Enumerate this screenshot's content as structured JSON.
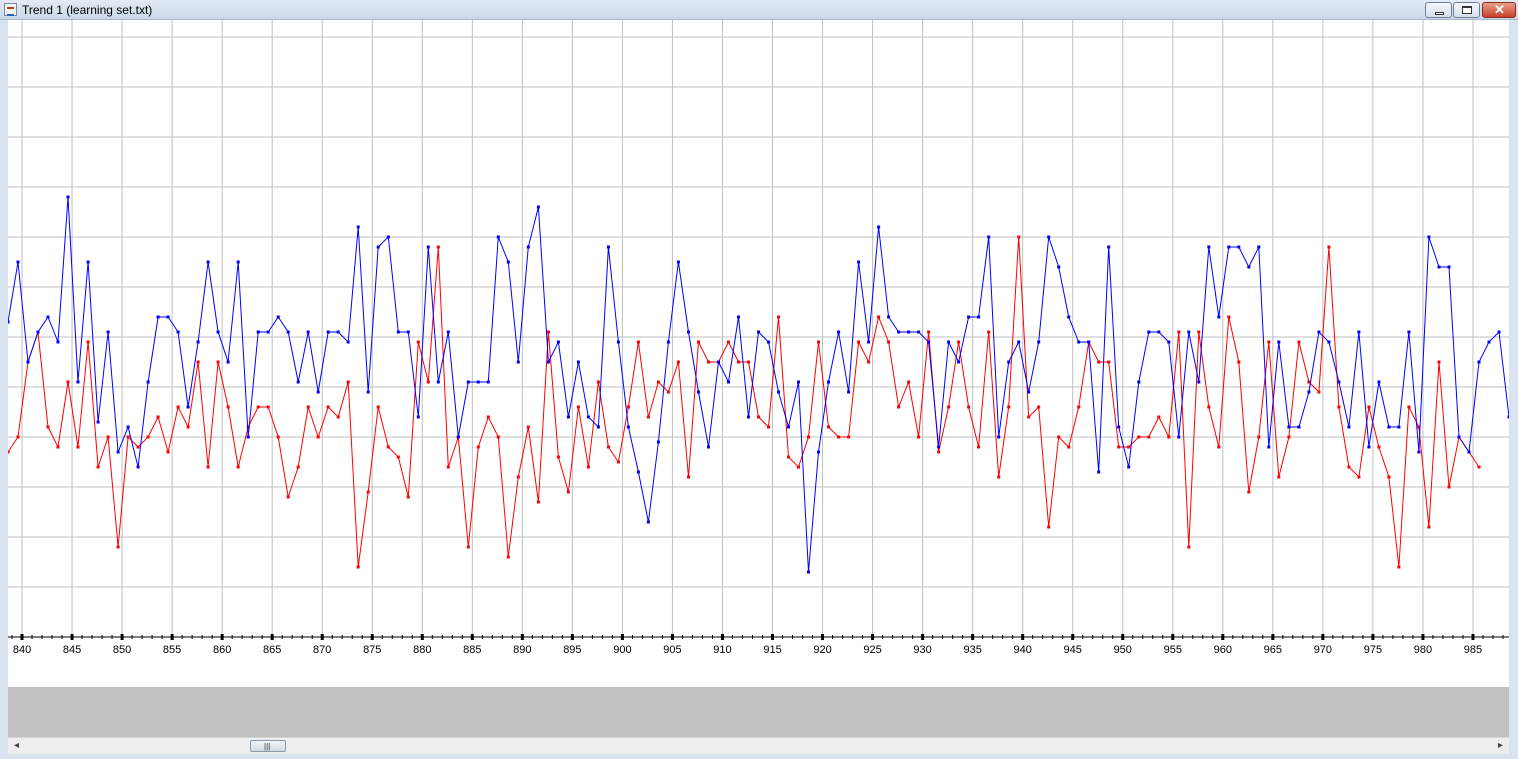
{
  "window": {
    "title": "Trend 1 (learning set.txt)",
    "icons": {
      "app": "java-app-icon",
      "minimize": "minimize-icon",
      "maximize": "restore-icon",
      "close": "close-icon"
    }
  },
  "scrollbar": {
    "thumb_grip": "|||",
    "left_arrow": "◂",
    "right_arrow": "▸",
    "position_fraction": 0.17
  },
  "chart_data": {
    "type": "line",
    "x_tick_labels": [
      "840",
      "845",
      "850",
      "855",
      "860",
      "865",
      "870",
      "875",
      "880",
      "885",
      "890",
      "895",
      "900",
      "905",
      "910",
      "915",
      "920",
      "925",
      "930",
      "935",
      "940",
      "945",
      "950",
      "955",
      "960",
      "965",
      "970",
      "975",
      "980",
      "985"
    ],
    "xlim": [
      838.6,
      988.6
    ],
    "grid": true,
    "colors": {
      "blue_series": "#0000ff",
      "red_series": "#ff0000",
      "grid": "#c0c0c0"
    },
    "series": [
      {
        "color": "#0000ff",
        "x_start": 838.6,
        "values": [
          6.3,
          7.5,
          5.5,
          6.1,
          6.4,
          5.9,
          8.8,
          5.1,
          7.5,
          4.3,
          6.1,
          3.7,
          4.2,
          3.4,
          5.1,
          6.4,
          6.4,
          6.1,
          4.6,
          5.9,
          7.5,
          6.1,
          5.5,
          7.5,
          4.0,
          6.1,
          6.1,
          6.4,
          6.1,
          5.1,
          6.1,
          4.9,
          6.1,
          6.1,
          5.9,
          8.2,
          4.9,
          7.8,
          8.0,
          6.1,
          6.1,
          4.4,
          7.8,
          5.1,
          6.1,
          4.0,
          5.1,
          5.1,
          5.1,
          8.0,
          7.5,
          5.5,
          7.8,
          8.6,
          5.5,
          5.9,
          4.4,
          5.5,
          4.4,
          4.2,
          7.8,
          5.9,
          4.2,
          3.3,
          2.3,
          3.9,
          5.9,
          7.5,
          6.1,
          4.9,
          3.8,
          5.5,
          5.1,
          6.4,
          4.4,
          6.1,
          5.9,
          4.9,
          4.2,
          5.1,
          1.3,
          3.7,
          5.1,
          6.1,
          4.9,
          7.5,
          5.9,
          8.2,
          6.4,
          6.1,
          6.1,
          6.1,
          5.9,
          3.8,
          5.9,
          5.5,
          6.4,
          6.4,
          8.0,
          4.0,
          5.5,
          5.9,
          4.9,
          5.9,
          8.0,
          7.4,
          6.4,
          5.9,
          5.9,
          3.3,
          7.8,
          4.2,
          3.4,
          5.1,
          6.1,
          6.1,
          5.9,
          4.0,
          6.1,
          5.1,
          7.8,
          6.4,
          7.8,
          7.8,
          7.4,
          7.8,
          3.8,
          5.9,
          4.2,
          4.2,
          4.9,
          6.1,
          5.9,
          5.1,
          4.2,
          6.1,
          3.8,
          5.1,
          4.2,
          4.2,
          6.1,
          3.7,
          8.0,
          7.4,
          7.4,
          4.0,
          3.7,
          5.5,
          5.9,
          6.1,
          4.4,
          5.3
        ]
      },
      {
        "color": "#ff0000",
        "x_start": 838.6,
        "values": [
          3.7,
          4.0,
          5.5,
          6.1,
          4.2,
          3.8,
          5.1,
          3.8,
          5.9,
          3.4,
          4.0,
          1.8,
          4.0,
          3.8,
          4.0,
          4.4,
          3.7,
          4.6,
          4.2,
          5.5,
          3.4,
          5.5,
          4.6,
          3.4,
          4.2,
          4.6,
          4.6,
          4.0,
          2.8,
          3.4,
          4.6,
          4.0,
          4.6,
          4.4,
          5.1,
          1.4,
          2.9,
          4.6,
          3.8,
          3.6,
          2.8,
          5.9,
          5.1,
          7.8,
          3.4,
          4.0,
          1.8,
          3.8,
          4.4,
          4.0,
          1.6,
          3.2,
          4.2,
          2.7,
          6.1,
          3.6,
          2.9,
          4.6,
          3.4,
          5.1,
          3.8,
          3.5,
          4.6,
          5.9,
          4.4,
          5.1,
          4.9,
          5.5,
          3.2,
          5.9,
          5.5,
          5.5,
          5.9,
          5.5,
          5.5,
          4.4,
          4.2,
          6.4,
          3.6,
          3.4,
          4.0,
          5.9,
          4.2,
          4.0,
          4.0,
          5.9,
          5.5,
          6.4,
          5.9,
          4.6,
          5.1,
          4.0,
          6.1,
          3.7,
          4.6,
          5.9,
          4.6,
          3.8,
          6.1,
          3.2,
          4.6,
          8.0,
          4.4,
          4.6,
          2.2,
          4.0,
          3.8,
          4.6,
          5.9,
          5.5,
          5.5,
          3.8,
          3.8,
          4.0,
          4.0,
          4.4,
          4.0,
          6.1,
          1.8,
          6.1,
          4.6,
          3.8,
          6.4,
          5.5,
          2.9,
          4.0,
          5.9,
          3.2,
          4.0,
          5.9,
          5.1,
          4.9,
          7.8,
          4.6,
          3.4,
          3.2,
          4.6,
          3.8,
          3.2,
          1.4,
          4.6,
          4.2,
          2.2,
          5.5,
          3.0,
          4.0,
          3.7,
          3.4
        ]
      }
    ]
  }
}
